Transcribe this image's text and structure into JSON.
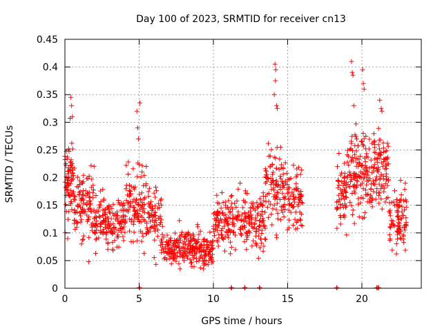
{
  "chart_data": {
    "type": "scatter",
    "title": "Day 100 of 2023, SRMTID for receiver cn13",
    "xlabel": "GPS time / hours",
    "ylabel": "SRMTID / TECUs",
    "xlim": [
      0,
      24
    ],
    "ylim": [
      0,
      0.45
    ],
    "x_ticks": [
      0,
      5,
      10,
      15,
      20
    ],
    "x_tick_labels": [
      "0",
      "5",
      "10",
      "15",
      "20"
    ],
    "y_ticks": [
      0,
      0.05,
      0.1,
      0.15,
      0.2,
      0.25,
      0.3,
      0.35,
      0.4,
      0.45
    ],
    "y_tick_labels": [
      "0",
      "0.05",
      "0.1",
      "0.15",
      "0.2",
      "0.25",
      "0.3",
      "0.35",
      "0.4",
      "0.45"
    ],
    "grid": true,
    "marker": "plus",
    "color": "#ff0000",
    "series": [
      {
        "name": "SRMTID",
        "segments": [
          {
            "x0": 0.0,
            "x1": 0.6,
            "mean": 0.2,
            "spread": 0.06,
            "n": 70
          },
          {
            "x0": 0.6,
            "x1": 2.0,
            "mean": 0.15,
            "spread": 0.05,
            "n": 110
          },
          {
            "x0": 2.0,
            "x1": 4.0,
            "mean": 0.12,
            "spread": 0.04,
            "n": 150
          },
          {
            "x0": 4.0,
            "x1": 5.5,
            "mean": 0.15,
            "spread": 0.05,
            "n": 110
          },
          {
            "x0": 5.5,
            "x1": 6.5,
            "mean": 0.13,
            "spread": 0.04,
            "n": 70
          },
          {
            "x0": 6.5,
            "x1": 10.0,
            "mean": 0.07,
            "spread": 0.025,
            "n": 260
          },
          {
            "x0": 10.0,
            "x1": 11.0,
            "mean": 0.12,
            "spread": 0.04,
            "n": 70
          },
          {
            "x0": 11.0,
            "x1": 13.5,
            "mean": 0.12,
            "spread": 0.04,
            "n": 170
          },
          {
            "x0": 13.5,
            "x1": 15.0,
            "mean": 0.18,
            "spread": 0.06,
            "n": 110
          },
          {
            "x0": 15.0,
            "x1": 16.0,
            "mean": 0.17,
            "spread": 0.05,
            "n": 70
          },
          {
            "x0": 18.3,
            "x1": 19.0,
            "mean": 0.17,
            "spread": 0.05,
            "n": 60
          },
          {
            "x0": 19.0,
            "x1": 20.5,
            "mean": 0.21,
            "spread": 0.07,
            "n": 130
          },
          {
            "x0": 20.5,
            "x1": 21.8,
            "mean": 0.22,
            "spread": 0.06,
            "n": 110
          },
          {
            "x0": 21.8,
            "x1": 23.0,
            "mean": 0.13,
            "spread": 0.05,
            "n": 90
          }
        ],
        "spikes": [
          {
            "x": 0.4,
            "y": 0.345
          },
          {
            "x": 0.45,
            "y": 0.33
          },
          {
            "x": 0.5,
            "y": 0.31
          },
          {
            "x": 4.85,
            "y": 0.32
          },
          {
            "x": 5.05,
            "y": 0.335
          },
          {
            "x": 4.9,
            "y": 0.29
          },
          {
            "x": 4.95,
            "y": 0.27
          },
          {
            "x": 14.15,
            "y": 0.405
          },
          {
            "x": 14.2,
            "y": 0.395
          },
          {
            "x": 14.18,
            "y": 0.375
          },
          {
            "x": 14.1,
            "y": 0.35
          },
          {
            "x": 14.25,
            "y": 0.33
          },
          {
            "x": 14.3,
            "y": 0.325
          },
          {
            "x": 19.3,
            "y": 0.41
          },
          {
            "x": 19.35,
            "y": 0.39
          },
          {
            "x": 19.4,
            "y": 0.385
          },
          {
            "x": 19.45,
            "y": 0.33
          },
          {
            "x": 20.05,
            "y": 0.395
          },
          {
            "x": 20.1,
            "y": 0.37
          },
          {
            "x": 20.15,
            "y": 0.36
          },
          {
            "x": 21.2,
            "y": 0.34
          },
          {
            "x": 21.3,
            "y": 0.325
          },
          {
            "x": 21.35,
            "y": 0.32
          }
        ],
        "zeros": [
          5.0,
          11.2,
          12.1,
          13.1,
          18.3,
          21.0,
          21.1
        ]
      }
    ]
  }
}
